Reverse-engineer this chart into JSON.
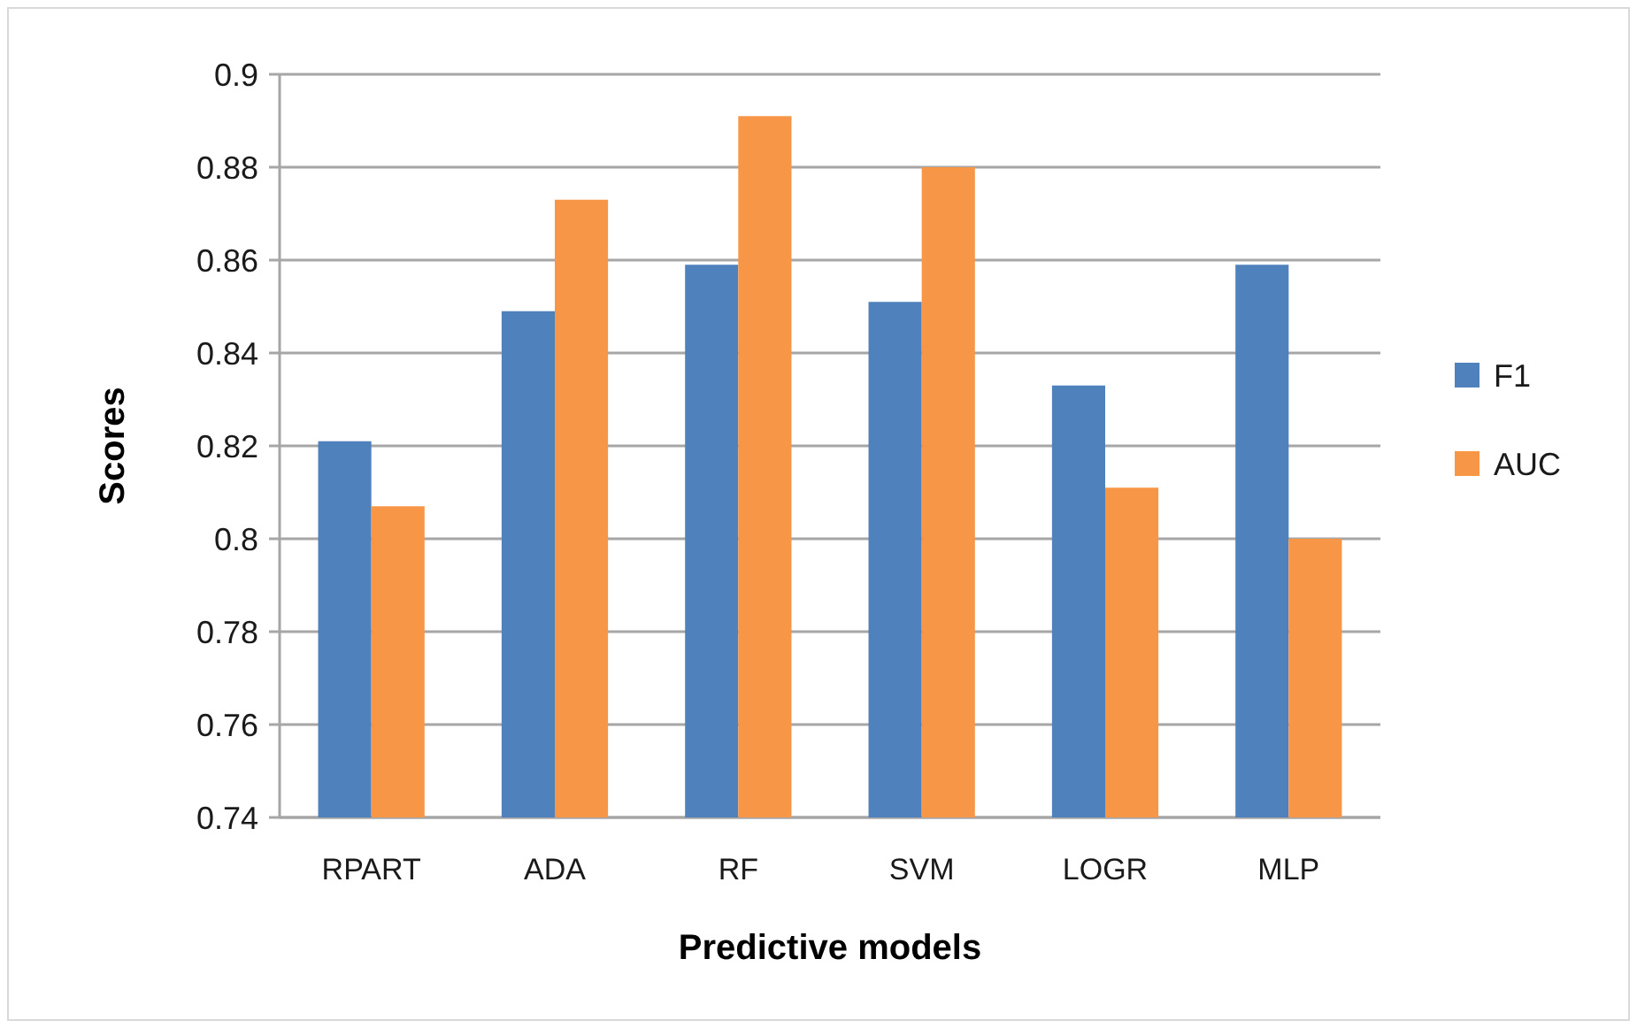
{
  "chart_data": {
    "type": "bar",
    "xlabel": "Predictive models",
    "ylabel": "Scores",
    "categories": [
      "RPART",
      "ADA",
      "RF",
      "SVM",
      "LOGR",
      "MLP"
    ],
    "series": [
      {
        "name": "F1",
        "color": "#4f81bd",
        "values": [
          0.821,
          0.849,
          0.859,
          0.851,
          0.833,
          0.859
        ]
      },
      {
        "name": "AUC",
        "color": "#f79646",
        "values": [
          0.807,
          0.873,
          0.891,
          0.88,
          0.811,
          0.8
        ]
      }
    ],
    "ylim": [
      0.74,
      0.9
    ],
    "yticks": [
      0.74,
      0.76,
      0.78,
      0.8,
      0.82,
      0.84,
      0.86,
      0.88,
      0.9
    ],
    "grid": "y",
    "legend": "right"
  }
}
